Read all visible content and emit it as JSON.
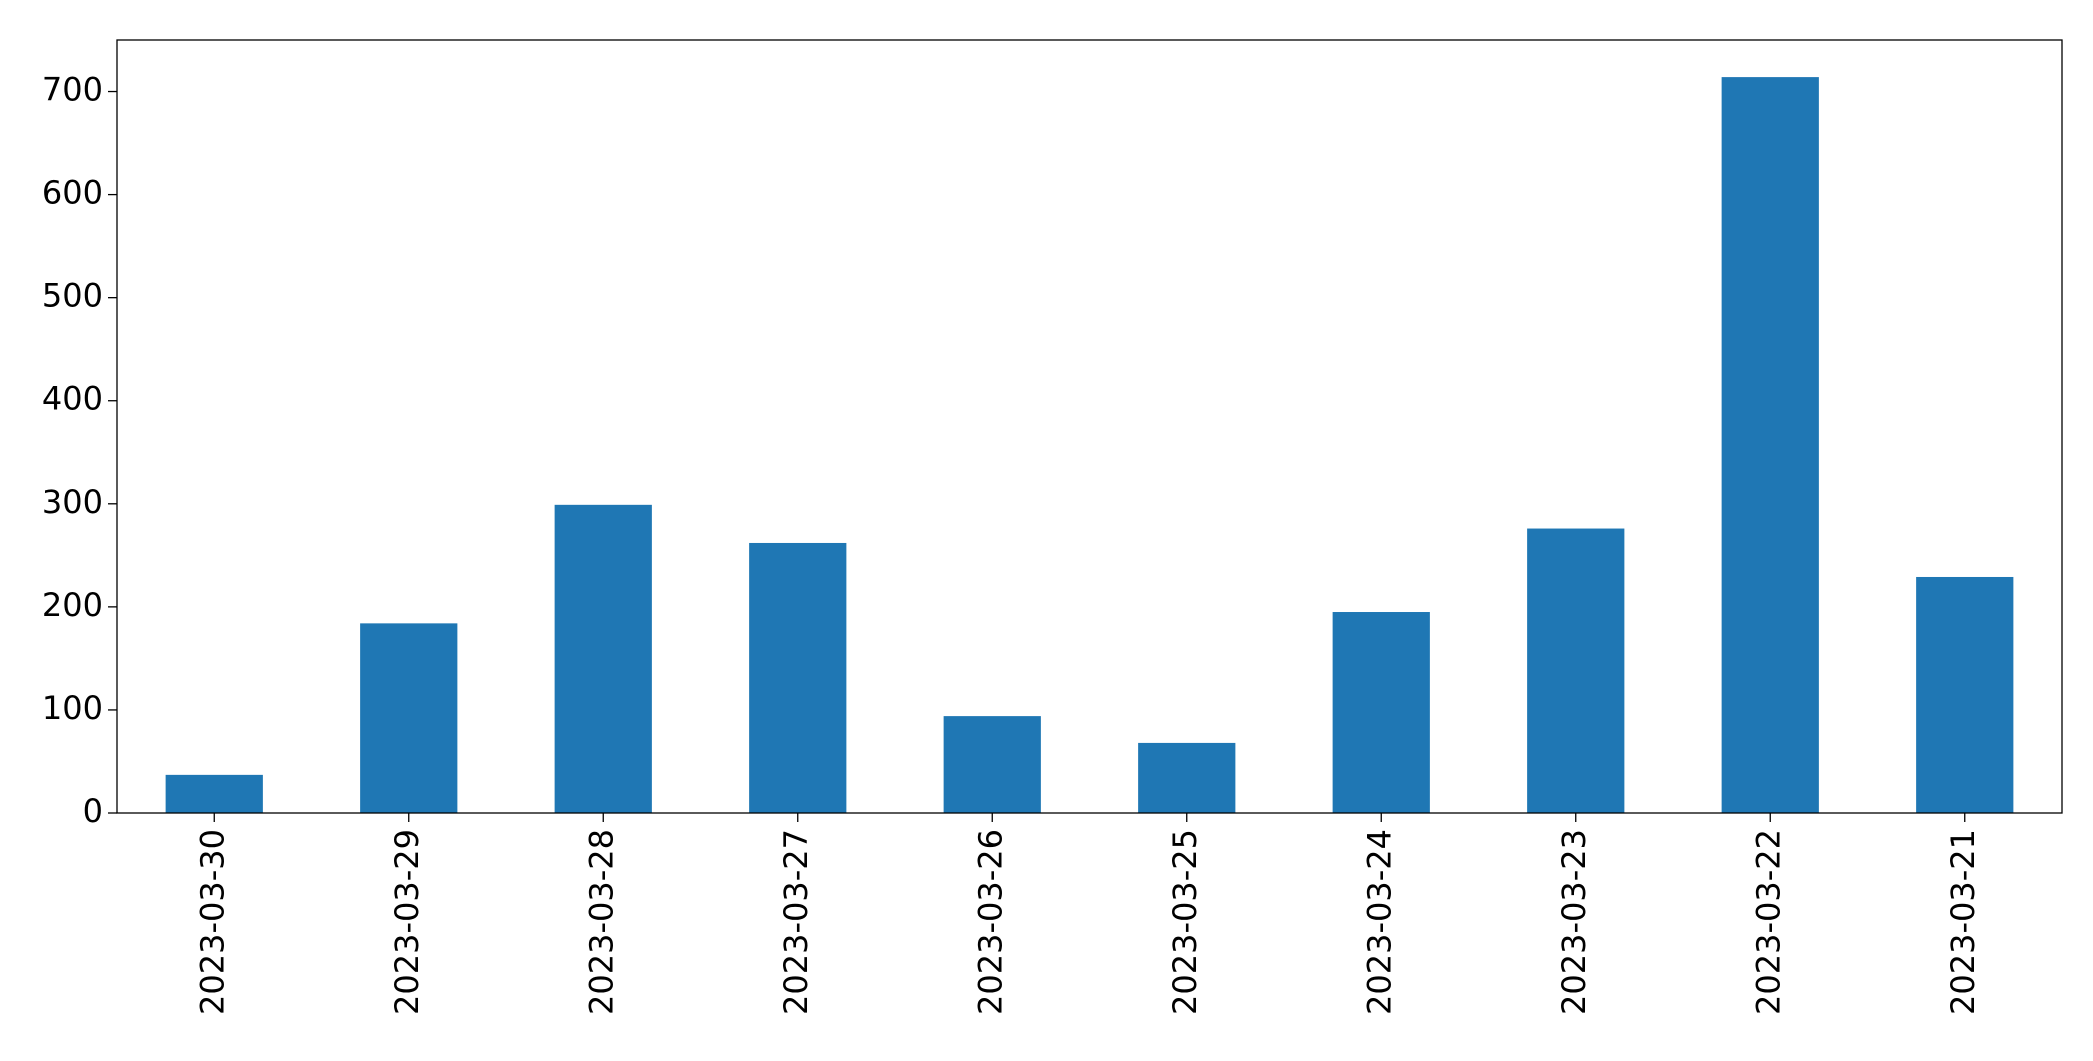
{
  "chart_data": {
    "type": "bar",
    "categories": [
      "2023-03-30",
      "2023-03-29",
      "2023-03-28",
      "2023-03-27",
      "2023-03-26",
      "2023-03-25",
      "2023-03-24",
      "2023-03-23",
      "2023-03-22",
      "2023-03-21"
    ],
    "values": [
      37,
      184,
      299,
      262,
      94,
      68,
      195,
      276,
      714,
      229
    ],
    "color": "#1f77b4",
    "ylim": [
      0,
      750
    ],
    "yticks": [
      0,
      100,
      200,
      300,
      400,
      500,
      600,
      700
    ],
    "grid": false
  }
}
